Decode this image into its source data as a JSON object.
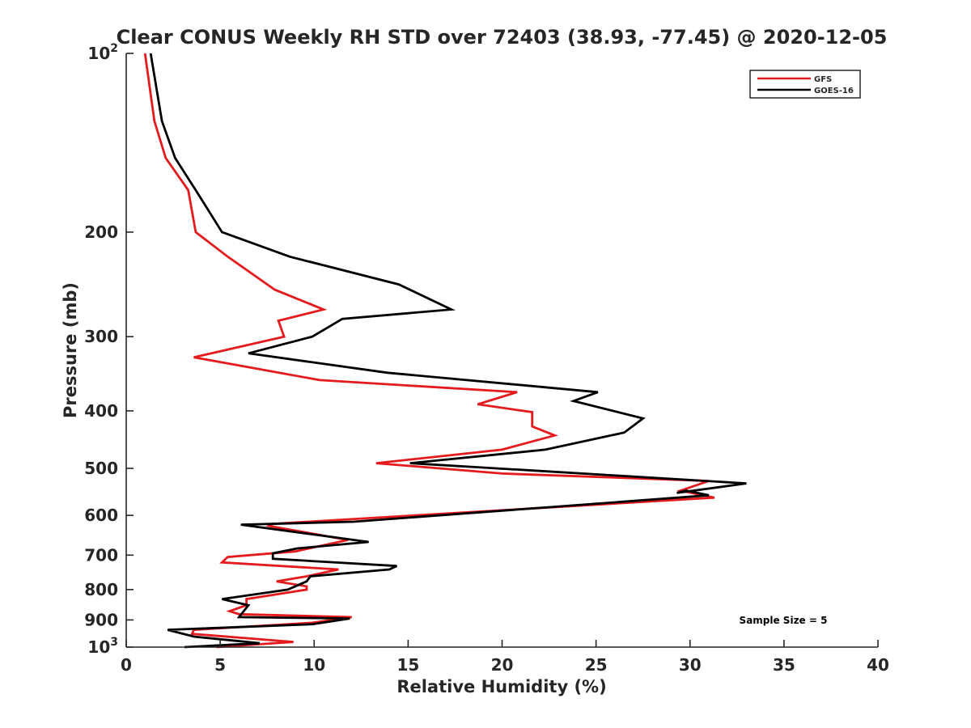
{
  "chart_data": {
    "type": "line",
    "title": "Clear CONUS Weekly RH STD over 72403 (38.93, -77.45) @ 2020-12-05",
    "xlabel": "Relative Humidity (%)",
    "ylabel": "Pressure (mb)",
    "xlim": [
      0,
      40
    ],
    "ylim": [
      100,
      1000
    ],
    "y_scale": "log",
    "y_reversed": true,
    "x_ticks": [
      "0",
      "5",
      "10",
      "15",
      "20",
      "25",
      "30",
      "35",
      "40"
    ],
    "y_tick_labels": [
      {
        "value": 100,
        "base": "10",
        "exp": "2"
      },
      {
        "value": 200,
        "base": "200",
        "exp": ""
      },
      {
        "value": 300,
        "base": "300",
        "exp": ""
      },
      {
        "value": 400,
        "base": "400",
        "exp": ""
      },
      {
        "value": 500,
        "base": "500",
        "exp": ""
      },
      {
        "value": 600,
        "base": "600",
        "exp": ""
      },
      {
        "value": 700,
        "base": "700",
        "exp": ""
      },
      {
        "value": 800,
        "base": "800",
        "exp": ""
      },
      {
        "value": 900,
        "base": "900",
        "exp": ""
      },
      {
        "value": 1000,
        "base": "10",
        "exp": "3"
      }
    ],
    "grid": false,
    "legend_position": "top-right",
    "annotation": "Sample Size = 5",
    "series": [
      {
        "name": "GFS",
        "color": "#e41a1c",
        "x": [
          1.0,
          1.5,
          2.1,
          3.3,
          3.7,
          5.4,
          7.9,
          10.5,
          8.1,
          8.4,
          3.6,
          10.3,
          20.8,
          18.7,
          21.6,
          21.6,
          22.8,
          20.0,
          13.3,
          20.0,
          31.0,
          29.5,
          31.3,
          7.8,
          7.6,
          11.8,
          9.0,
          5.4,
          5.1,
          11.3,
          9.6,
          8.0,
          9.6,
          9.6,
          6.4,
          6.4,
          5.5,
          6.0,
          12.0,
          9.9,
          3.6,
          3.5,
          8.9,
          4.8
        ],
        "y": [
          100,
          130,
          150,
          170,
          200,
          220,
          250,
          270,
          282,
          300,
          325,
          355,
          372,
          390,
          402,
          425,
          440,
          465,
          490,
          510,
          525,
          545,
          560,
          620,
          625,
          660,
          690,
          705,
          720,
          740,
          760,
          775,
          790,
          800,
          830,
          850,
          870,
          880,
          890,
          910,
          935,
          950,
          980,
          1000
        ],
        "name_label": "GFS"
      },
      {
        "name": "GOES-16",
        "color": "#000000",
        "x": [
          1.3,
          1.9,
          2.6,
          3.7,
          5.1,
          8.7,
          14.5,
          17.3,
          11.5,
          9.9,
          6.5,
          13.9,
          25.1,
          23.8,
          27.5,
          26.5,
          22.3,
          15.1,
          22.0,
          33.0,
          29.3,
          29.8,
          31.0,
          12.1,
          6.1,
          12.9,
          9.1,
          7.8,
          7.8,
          14.4,
          14.0,
          9.8,
          9.6,
          8.6,
          5.1,
          6.5,
          6.0,
          11.9,
          9.9,
          2.2,
          3.6,
          7.1,
          3.1
        ],
        "y": [
          100,
          130,
          150,
          170,
          200,
          220,
          245,
          270,
          280,
          300,
          320,
          345,
          372,
          385,
          412,
          435,
          465,
          490,
          505,
          530,
          550,
          545,
          555,
          615,
          622,
          665,
          682,
          695,
          710,
          730,
          740,
          760,
          775,
          800,
          830,
          850,
          890,
          895,
          915,
          935,
          960,
          985,
          1000
        ],
        "name_label": "GOES-16"
      }
    ]
  }
}
